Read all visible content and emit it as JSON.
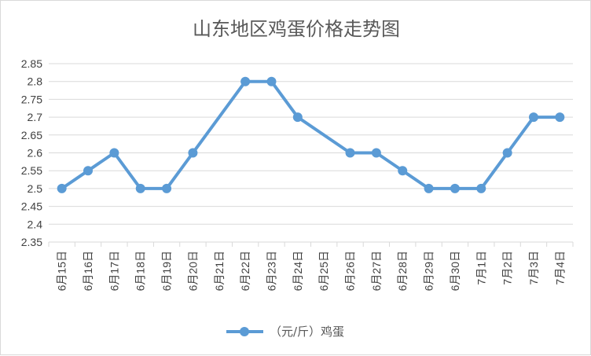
{
  "chart_data": {
    "type": "line",
    "title": "山东地区鸡蛋价格走势图",
    "categories": [
      "6月15日",
      "6月16日",
      "6月17日",
      "6月18日",
      "6月19日",
      "6月20日",
      "6月21日",
      "6月22日",
      "6月23日",
      "6月24日",
      "6月25日",
      "6月26日",
      "6月27日",
      "6月28日",
      "6月29日",
      "6月30日",
      "7月1日",
      "7月2日",
      "7月3日",
      "7月4日"
    ],
    "series": [
      {
        "name": "（元/斤）鸡蛋",
        "color": "#5b9bd5",
        "values": [
          2.5,
          2.55,
          2.6,
          2.5,
          2.5,
          2.6,
          null,
          2.8,
          2.8,
          2.7,
          null,
          2.6,
          2.6,
          2.55,
          2.5,
          2.5,
          2.5,
          2.6,
          2.7,
          2.7
        ]
      }
    ],
    "yticks": [
      "2.35",
      "2.4",
      "2.45",
      "2.5",
      "2.55",
      "2.6",
      "2.65",
      "2.7",
      "2.75",
      "2.8",
      "2.85"
    ],
    "ylim": [
      2.35,
      2.85
    ],
    "grid": true,
    "legend_position": "bottom",
    "gridline_color": "#d9d9d9"
  }
}
